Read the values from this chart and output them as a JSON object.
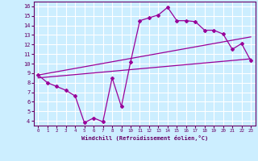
{
  "bg_color": "#cceeff",
  "grid_color": "#ffffff",
  "line_color": "#990099",
  "x_ticks": [
    0,
    1,
    2,
    3,
    4,
    5,
    6,
    7,
    8,
    9,
    10,
    11,
    12,
    13,
    14,
    15,
    16,
    17,
    18,
    19,
    20,
    21,
    22,
    23
  ],
  "ylim": [
    3.5,
    16.5
  ],
  "xlim": [
    -0.5,
    23.5
  ],
  "yticks": [
    4,
    5,
    6,
    7,
    8,
    9,
    10,
    11,
    12,
    13,
    14,
    15,
    16
  ],
  "xlabel": "Windchill (Refroidissement éolien,°C)",
  "line1_x": [
    0,
    1,
    2,
    3,
    4,
    5,
    6,
    7,
    8,
    9,
    10,
    11,
    12,
    13,
    14,
    15,
    16,
    17,
    18,
    19,
    20,
    21,
    22,
    23
  ],
  "line1_y": [
    8.8,
    8.0,
    7.6,
    7.2,
    6.6,
    3.8,
    4.3,
    3.9,
    8.5,
    5.5,
    10.2,
    14.5,
    14.8,
    15.1,
    15.9,
    14.5,
    14.5,
    14.4,
    13.5,
    13.5,
    13.1,
    11.5,
    12.1,
    10.3
  ],
  "line2_x": [
    0,
    23
  ],
  "line2_y": [
    8.5,
    10.5
  ],
  "line3_x": [
    0,
    23
  ],
  "line3_y": [
    8.8,
    12.8
  ]
}
